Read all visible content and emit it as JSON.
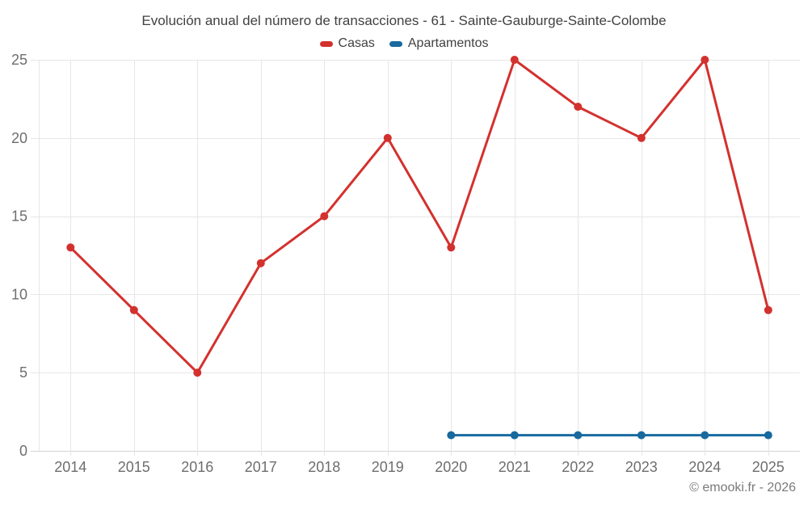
{
  "title": "Evolución anual del número de transacciones - 61 - Sainte-Gauburge-Sainte-Colombe",
  "footer": "© emooki.fr - 2026",
  "colors": {
    "grid": "#e6e6e6",
    "axis_baseline": "#d4d4d4",
    "tick_text": "#6e6e6e",
    "title_text": "#414141",
    "footer_text": "#7a7a7a",
    "casas": "#d3312e",
    "apartamentos": "#17699e"
  },
  "chart_data": {
    "type": "line",
    "title": "Evolución anual del número de transacciones - 61 - Sainte-Gauburge-Sainte-Colombe",
    "categories": [
      "2014",
      "2015",
      "2016",
      "2017",
      "2018",
      "2019",
      "2020",
      "2021",
      "2022",
      "2023",
      "2024",
      "2025"
    ],
    "series": [
      {
        "name": "Casas",
        "color": "#d3312e",
        "values": [
          13,
          9,
          5,
          12,
          15,
          20,
          13,
          25,
          22,
          20,
          25,
          9
        ]
      },
      {
        "name": "Apartamentos",
        "color": "#17699e",
        "values": [
          null,
          null,
          null,
          null,
          null,
          null,
          1,
          1,
          1,
          1,
          1,
          1
        ]
      }
    ],
    "xlabel": "",
    "ylabel": "",
    "ylim": [
      0,
      25
    ],
    "yticks": [
      0,
      5,
      10,
      15,
      20,
      25
    ],
    "grid": true,
    "legend_position": "top",
    "marker_radius": 5,
    "line_width": 3
  }
}
